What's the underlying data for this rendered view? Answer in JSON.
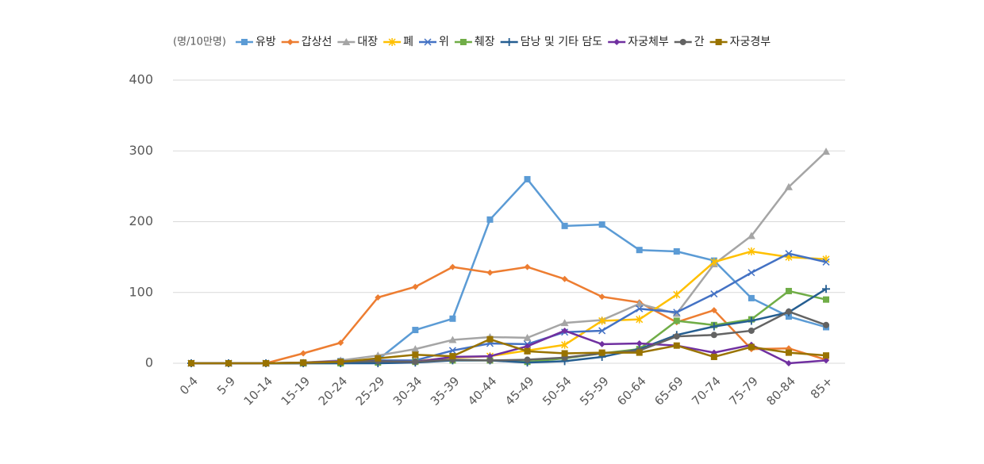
{
  "chart_data": {
    "type": "line",
    "y_unit": "(명/10만명)",
    "categories": [
      "0-4",
      "5-9",
      "10-14",
      "15-19",
      "20-24",
      "25-29",
      "30-34",
      "35-39",
      "40-44",
      "45-49",
      "50-54",
      "55-59",
      "60-64",
      "65-69",
      "70-74",
      "75-79",
      "80-84",
      "85+"
    ],
    "ylim": [
      0,
      400
    ],
    "yticks": [
      0,
      100,
      200,
      300,
      400
    ],
    "grid": true,
    "series": [
      {
        "name": "유방",
        "color": "#5b9bd5",
        "marker": "square",
        "values": [
          0,
          0,
          0,
          1,
          3,
          5,
          47,
          63,
          203,
          260,
          194,
          196,
          160,
          158,
          145,
          92,
          66,
          51
        ]
      },
      {
        "name": "갑상선",
        "color": "#ed7d31",
        "marker": "diamond",
        "values": [
          0,
          0,
          0,
          14,
          29,
          93,
          108,
          136,
          128,
          136,
          119,
          94,
          86,
          58,
          75,
          20,
          21,
          5
        ]
      },
      {
        "name": "대장",
        "color": "#a5a5a5",
        "marker": "triangle",
        "values": [
          0,
          0,
          0,
          1,
          4,
          11,
          20,
          33,
          37,
          36,
          57,
          61,
          84,
          70,
          140,
          180,
          249,
          299
        ]
      },
      {
        "name": "폐",
        "color": "#ffc000",
        "marker": "star",
        "values": [
          0,
          0,
          0,
          0,
          1,
          3,
          3,
          8,
          10,
          18,
          26,
          60,
          62,
          97,
          143,
          158,
          150,
          147
        ]
      },
      {
        "name": "위",
        "color": "#4472c4",
        "marker": "x",
        "values": [
          0,
          0,
          0,
          0,
          2,
          4,
          4,
          18,
          28,
          27,
          44,
          46,
          77,
          72,
          98,
          128,
          155,
          143
        ]
      },
      {
        "name": "췌장",
        "color": "#70ad47",
        "marker": "square",
        "values": [
          0,
          0,
          0,
          0,
          0,
          1,
          2,
          4,
          4,
          2,
          7,
          14,
          20,
          60,
          54,
          62,
          102,
          90
        ]
      },
      {
        "name": "담낭 및 기타 담도",
        "color": "#255e91",
        "marker": "plus",
        "values": [
          0,
          0,
          0,
          0,
          0,
          0,
          1,
          4,
          4,
          1,
          3,
          9,
          20,
          40,
          52,
          60,
          72,
          105
        ]
      },
      {
        "name": "자궁체부",
        "color": "#7030a0",
        "marker": "diamond",
        "values": [
          0,
          0,
          0,
          1,
          3,
          3,
          2,
          9,
          10,
          24,
          46,
          27,
          28,
          25,
          15,
          26,
          0,
          4
        ]
      },
      {
        "name": "간",
        "color": "#636363",
        "marker": "circle",
        "values": [
          0,
          0,
          0,
          0,
          2,
          3,
          2,
          5,
          4,
          5,
          8,
          14,
          18,
          38,
          40,
          46,
          73,
          54
        ]
      },
      {
        "name": "자궁경부",
        "color": "#997300",
        "marker": "square",
        "values": [
          0,
          0,
          0,
          1,
          2,
          7,
          12,
          10,
          34,
          17,
          14,
          15,
          15,
          25,
          9,
          23,
          15,
          11
        ]
      }
    ]
  }
}
